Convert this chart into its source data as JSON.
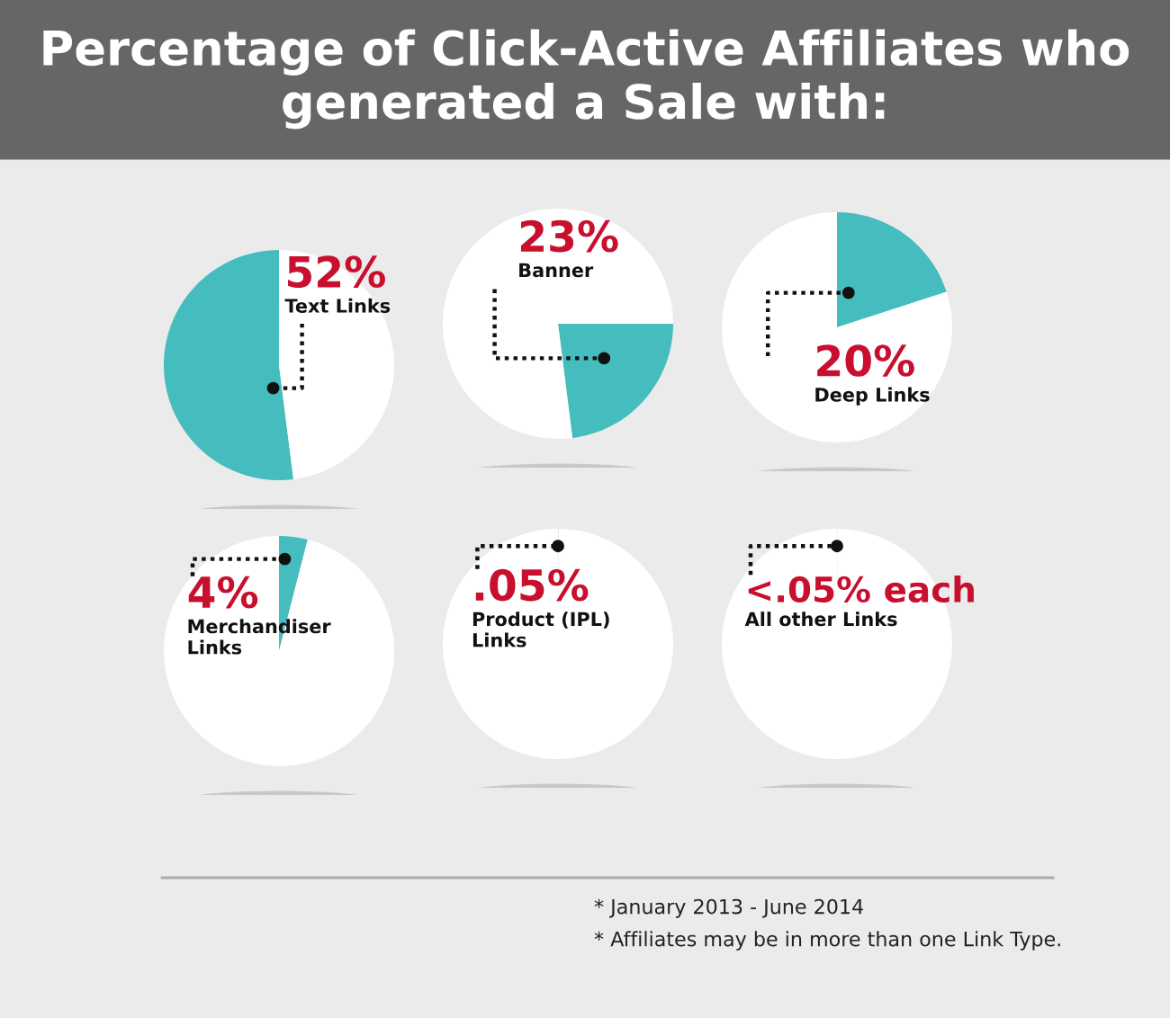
{
  "chart_data": [
    {
      "type": "pie",
      "title": "Percentage of Click-Active Affiliates who generated a Sale with:",
      "categories": [
        "Text Links",
        null
      ],
      "values": [
        52,
        48
      ],
      "colors": [
        "#45bdbf",
        "#ffffff"
      ],
      "value_labels": [
        "52%",
        null
      ]
    },
    {
      "type": "pie",
      "categories": [
        "Banner",
        null
      ],
      "values": [
        23,
        77
      ],
      "colors": [
        "#45bdbf",
        "#ffffff"
      ],
      "value_labels": [
        "23%",
        null
      ]
    },
    {
      "type": "pie",
      "categories": [
        "Deep Links",
        null
      ],
      "values": [
        20,
        80
      ],
      "colors": [
        "#45bdbf",
        "#ffffff"
      ],
      "value_labels": [
        "20%",
        null
      ]
    },
    {
      "type": "pie",
      "categories": [
        "Merchandiser\nLinks",
        null
      ],
      "values": [
        4,
        96
      ],
      "colors": [
        "#45bdbf",
        "#ffffff"
      ],
      "value_labels": [
        "4%",
        null
      ]
    },
    {
      "type": "pie",
      "categories": [
        "Product (IPL)\nLinks",
        null
      ],
      "values": [
        0.05,
        99.95
      ],
      "colors": [
        "#45bdbf",
        "#ffffff"
      ],
      "value_labels": [
        ".05%",
        null
      ]
    },
    {
      "type": "pie",
      "categories": [
        "All other Links",
        null
      ],
      "values": [
        0.04,
        99.96
      ],
      "colors": [
        "#45bdbf",
        "#ffffff"
      ],
      "value_labels": [
        "<.05% each",
        null
      ],
      "annotations": [
        "* January 2013 - June 2014",
        "* Affiliates may be in more than one Link Type."
      ]
    }
  ]
}
